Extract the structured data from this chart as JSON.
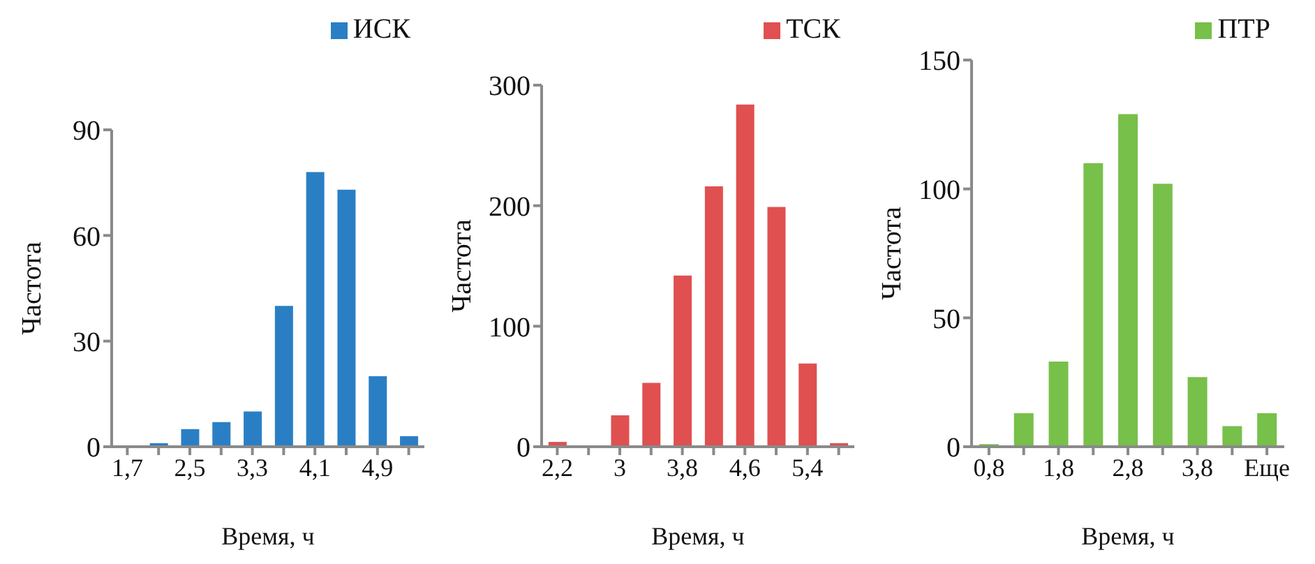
{
  "chart_data": [
    {
      "type": "bar",
      "xlabel": "Время, ч",
      "ylabel": "Частота",
      "categories": [
        "1,7",
        null,
        "2,5",
        null,
        "3,3",
        null,
        "4,1",
        null,
        "4,9",
        null
      ],
      "series": [
        {
          "name": "ИСК",
          "color": "#2a7fc4",
          "values": [
            0,
            1,
            5,
            7,
            10,
            40,
            78,
            73,
            20,
            3
          ]
        }
      ],
      "ylim": [
        0,
        90
      ],
      "yticks": [
        0,
        30,
        60,
        90
      ],
      "grid": false,
      "legend": "top right"
    },
    {
      "type": "bar",
      "xlabel": "Время, ч",
      "ylabel": "Частота",
      "categories": [
        "2,2",
        null,
        "3",
        null,
        "3,8",
        null,
        "4,6",
        null,
        "5,4",
        null
      ],
      "series": [
        {
          "name": "ТСК",
          "color": "#e05050",
          "values": [
            4,
            0,
            26,
            53,
            142,
            216,
            284,
            199,
            69,
            3
          ]
        }
      ],
      "ylim": [
        0,
        300
      ],
      "yticks": [
        0,
        100,
        200,
        300
      ],
      "grid": false,
      "legend": "top right"
    },
    {
      "type": "bar",
      "xlabel": "Время, ч",
      "ylabel": "Частота",
      "categories": [
        "0,8",
        null,
        "1,8",
        null,
        "2,8",
        null,
        "3,8",
        null,
        "Еще"
      ],
      "series": [
        {
          "name": "ПТР",
          "color": "#77c04a",
          "values": [
            1,
            13,
            33,
            110,
            129,
            102,
            27,
            8,
            13
          ]
        }
      ],
      "ylim": [
        0,
        150
      ],
      "yticks": [
        0,
        50,
        100,
        150
      ],
      "grid": false,
      "legend": "top right"
    }
  ]
}
